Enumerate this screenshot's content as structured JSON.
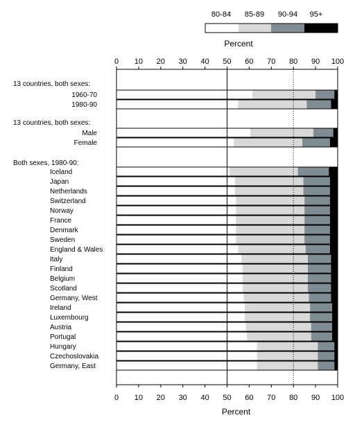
{
  "chart_data": {
    "type": "bar",
    "orientation": "horizontal",
    "stacked": "cumulative",
    "xlabel": "Percent",
    "xlim": [
      0,
      100
    ],
    "xticks": [
      0,
      10,
      20,
      30,
      40,
      50,
      60,
      70,
      80,
      90,
      100
    ],
    "reference_lines": [
      {
        "x": 50,
        "style": "solid"
      },
      {
        "x": 80,
        "style": "dotted"
      }
    ],
    "legend": {
      "placement": "top-right",
      "entries": [
        {
          "label": "80-84",
          "color": "#ffffff"
        },
        {
          "label": "85-89",
          "color": "#d9d9d9"
        },
        {
          "label": "90-94",
          "color": "#7f8c91"
        },
        {
          "label": "95+",
          "color": "#000000"
        }
      ]
    },
    "series_names": [
      "80-84",
      "85-89",
      "90-94",
      "95+"
    ],
    "groups": [
      {
        "label": "13 countries, both sexes:",
        "rows": [
          {
            "label": "1960-70",
            "cumulative": [
              61.5,
              90,
              98.5,
              100
            ]
          },
          {
            "label": "1980-90",
            "cumulative": [
              55,
              86,
              97,
              100
            ]
          }
        ]
      },
      {
        "label": "13 countries, both sexes:",
        "rows": [
          {
            "label": "Male",
            "cumulative": [
              60.5,
              89,
              98,
              100
            ]
          },
          {
            "label": "Female",
            "cumulative": [
              53,
              84,
              96.5,
              100
            ]
          }
        ]
      },
      {
        "label": "Both sexes, 1980-90:",
        "rows": [
          {
            "label": "Iceland",
            "cumulative": [
              51,
              82,
              96,
              100
            ]
          },
          {
            "label": "Japan",
            "cumulative": [
              53.5,
              84.5,
              96.5,
              100
            ]
          },
          {
            "label": "Netherlands",
            "cumulative": [
              53.5,
              84.5,
              96.5,
              100
            ]
          },
          {
            "label": "Switzerland",
            "cumulative": [
              54,
              85,
              96.5,
              100
            ]
          },
          {
            "label": "Norway",
            "cumulative": [
              54,
              85,
              96.5,
              100
            ]
          },
          {
            "label": "France",
            "cumulative": [
              54,
              85,
              96.5,
              100
            ]
          },
          {
            "label": "Denmark",
            "cumulative": [
              54,
              85,
              96.5,
              100
            ]
          },
          {
            "label": "Sweden",
            "cumulative": [
              54,
              85,
              96.5,
              100
            ]
          },
          {
            "label": "England & Wales",
            "cumulative": [
              55,
              85.5,
              96.5,
              100
            ]
          },
          {
            "label": "Italy",
            "cumulative": [
              56.5,
              86.5,
              97,
              100
            ]
          },
          {
            "label": "Finland",
            "cumulative": [
              57,
              86.5,
              97,
              100
            ]
          },
          {
            "label": "Belgium",
            "cumulative": [
              57,
              86.5,
              97,
              100
            ]
          },
          {
            "label": "Scotland",
            "cumulative": [
              57,
              86.5,
              97,
              100
            ]
          },
          {
            "label": "Germany, West",
            "cumulative": [
              57.5,
              87,
              97,
              100
            ]
          },
          {
            "label": "Ireland",
            "cumulative": [
              58,
              87.5,
              97.5,
              100
            ]
          },
          {
            "label": "Luxembourg",
            "cumulative": [
              58,
              87.5,
              97.5,
              100
            ]
          },
          {
            "label": "Austria",
            "cumulative": [
              58.5,
              88,
              97.5,
              100
            ]
          },
          {
            "label": "Portugal",
            "cumulative": [
              59,
              88,
              97.5,
              100
            ]
          },
          {
            "label": "Hungary",
            "cumulative": [
              63.5,
              91,
              98.5,
              100
            ]
          },
          {
            "label": "Czechoslovakia",
            "cumulative": [
              63.5,
              91,
              98.5,
              100
            ]
          },
          {
            "label": "Germany, East",
            "cumulative": [
              63.5,
              91,
              98.5,
              100
            ]
          }
        ]
      }
    ]
  }
}
